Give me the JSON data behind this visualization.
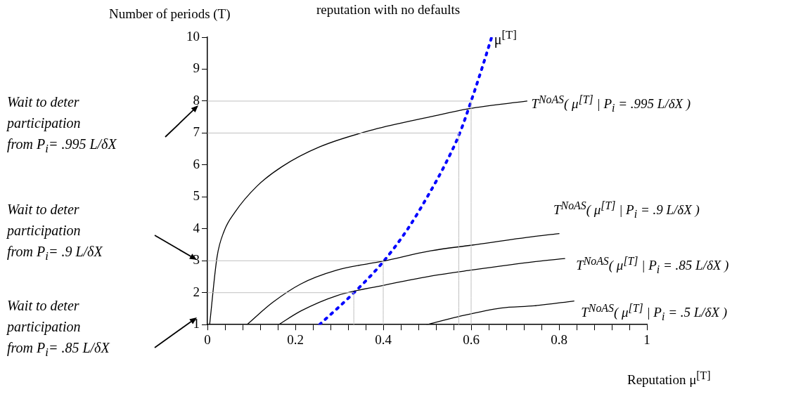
{
  "chart_data": {
    "type": "line",
    "title": "reputation with no defaults",
    "xlabel": "Reputation μ$^{[T]}$",
    "ylabel": "Number of periods (T)",
    "xlim": [
      0,
      1
    ],
    "ylim": [
      1,
      10
    ],
    "xticks": [
      0,
      {
        "value": 0.04,
        "label": null
      },
      {
        "value": 0.08,
        "label": null
      },
      {
        "value": 0.12,
        "label": null
      },
      {
        "value": 0.16,
        "label": null
      },
      0.2,
      {
        "value": 0.24,
        "label": null
      },
      {
        "value": 0.28,
        "label": null
      },
      {
        "value": 0.32,
        "label": null
      },
      {
        "value": 0.36,
        "label": null
      },
      0.4,
      {
        "value": 0.44,
        "label": null
      },
      {
        "value": 0.48,
        "label": null
      },
      {
        "value": 0.52,
        "label": null
      },
      {
        "value": 0.56,
        "label": null
      },
      0.6,
      {
        "value": 0.64,
        "label": null
      },
      {
        "value": 0.68,
        "label": null
      },
      {
        "value": 0.72,
        "label": null
      },
      {
        "value": 0.76,
        "label": null
      },
      0.8,
      {
        "value": 0.84,
        "label": null
      },
      {
        "value": 0.88,
        "label": null
      },
      {
        "value": 0.92,
        "label": null
      },
      {
        "value": 0.96,
        "label": null
      },
      1
    ],
    "yticks": [
      1,
      2,
      3,
      4,
      5,
      6,
      7,
      8,
      9,
      10
    ],
    "grid": false,
    "legend": false,
    "marker": "none",
    "series": [
      {
        "type": "line",
        "color": "#c0c0c0",
        "x": [
          0,
          0.6,
          0.6
        ],
        "values": [
          8,
          8,
          1
        ]
      },
      {
        "type": "line",
        "color": "#c0c0c0",
        "x": [
          0,
          0.572,
          0.572
        ],
        "values": [
          7,
          7,
          1
        ]
      },
      {
        "type": "line",
        "color": "#c0c0c0",
        "x": [
          0,
          0.4,
          0.4
        ],
        "values": [
          3,
          3,
          1
        ]
      },
      {
        "type": "line",
        "color": "#c0c0c0",
        "x": [
          0,
          0.333,
          0.333
        ],
        "values": [
          2,
          2,
          1
        ]
      },
      {
        "type": "line",
        "name": "T$^{NoAS}$( μ$^{[T]}$ | P$_{i}$ = .995 L/δX )",
        "color": "#000000",
        "x": [
          0.005,
          0.022,
          0.038,
          0.062,
          0.113,
          0.17,
          0.256,
          0.379,
          0.508,
          0.594,
          0.727
        ],
        "values": [
          1,
          3.13,
          3.93,
          4.51,
          5.34,
          5.95,
          6.57,
          7.11,
          7.51,
          7.76,
          8.0
        ]
      },
      {
        "type": "line",
        "name": "T$^{NoAS}$( μ$^{[T]}$ | P$_{i}$ = .9 L/δX )",
        "color": "#000000",
        "x": [
          0.09,
          0.148,
          0.212,
          0.293,
          0.4,
          0.508,
          0.602,
          0.744,
          0.8
        ],
        "values": [
          1,
          1.69,
          2.27,
          2.7,
          2.99,
          3.31,
          3.49,
          3.76,
          3.85
        ]
      },
      {
        "type": "line",
        "name": "T$^{NoAS}$( μ$^{[T]}$ | P$_{i}$ = .85 L/δX )",
        "color": "#000000",
        "x": [
          0.162,
          0.213,
          0.293,
          0.4,
          0.508,
          0.602,
          0.744,
          0.813
        ],
        "values": [
          1,
          1.43,
          1.9,
          2.23,
          2.52,
          2.71,
          2.97,
          3.07
        ]
      },
      {
        "type": "line",
        "name": "T$^{NoAS}$( μ$^{[T]}$ | P$_{i}$ = .5 L/δX )",
        "color": "#000000",
        "x": [
          0.499,
          0.571,
          0.668,
          0.744,
          0.834
        ],
        "values": [
          1,
          1.25,
          1.52,
          1.59,
          1.74
        ]
      },
      {
        "type": "line",
        "name": "μ$^{[T]}$",
        "color": "#0000ff",
        "line_style": "dotted",
        "x": [
          0.255,
          0.332,
          0.397,
          0.456,
          0.504,
          0.541,
          0.573,
          0.603,
          0.627,
          0.646
        ],
        "values": [
          1,
          1.98,
          2.92,
          4.0,
          5.09,
          6.02,
          6.96,
          8.12,
          9.13,
          9.97
        ]
      }
    ],
    "annotations": [
      "Wait to deter\nparticipation\nfrom P$_{i}$= .995 L/δX",
      "Wait to deter\nparticipation\nfrom P$_{i}$= .9 L/δX",
      "Wait to deter\nparticipation\nfrom P$_{i}$= .85 L/δX"
    ]
  }
}
